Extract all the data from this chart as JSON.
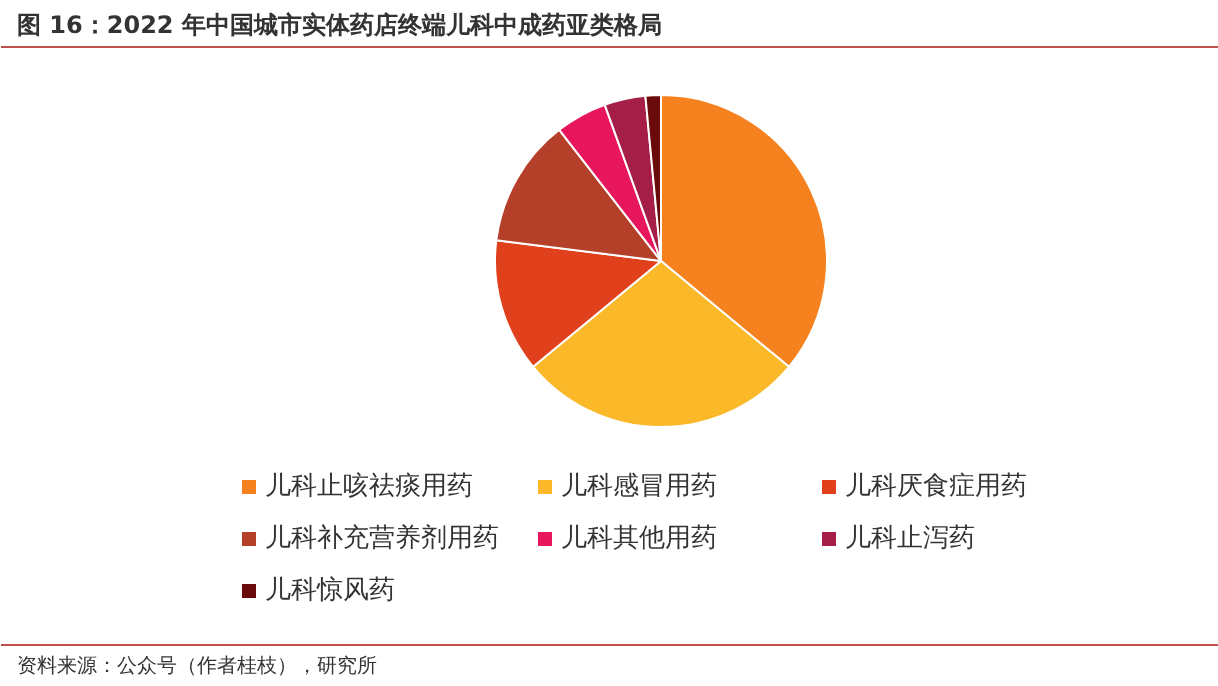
{
  "chart_data": {
    "type": "pie",
    "title": "图 16：2022 年中国城市实体药店终端儿科中成药亚类格局",
    "categories": [
      "儿科止咳祛痰用药",
      "儿科感冒用药",
      "儿科厌食症用药",
      "儿科补充营养剂用药",
      "儿科其他用药",
      "儿科止泻药",
      "儿科惊风药"
    ],
    "values": [
      36,
      28,
      13,
      12.5,
      5,
      4,
      1.5
    ],
    "colors": [
      "#f5821f",
      "#fbb829",
      "#e0401b",
      "#b5402a",
      "#e8175d",
      "#a51e48",
      "#6b0a0a"
    ],
    "legend": "bottom",
    "annotations": [
      "资料来源：公众号（作者桂枝），研究所"
    ]
  }
}
